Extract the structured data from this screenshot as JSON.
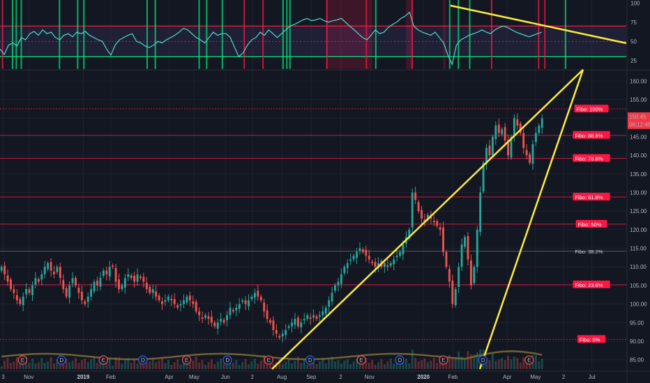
{
  "colors": {
    "background": "#131722",
    "grid": "#1e222d",
    "up": "#26a69a",
    "down": "#ef5350",
    "fib": "#ff1744",
    "fib_neutral": "#e0e3eb",
    "trend": "#ffeb3b",
    "rsi": "#4dd0c4",
    "rsi_band_high": "#ff1744",
    "rsi_band_low": "#00e676",
    "volume_ma": "#7a6a35",
    "current_price": "#f23645"
  },
  "chart_data": [
    {
      "type": "line",
      "name_panel": "rsi",
      "ylim": [
        14,
        104
      ],
      "yticks": [
        "100",
        "75",
        "50",
        "25"
      ],
      "band": [
        30,
        70
      ],
      "series": [
        {
          "values": [
            40,
            33,
            45,
            48,
            44,
            55,
            52,
            60,
            63,
            58,
            65,
            60,
            62,
            55,
            52,
            58,
            60,
            56,
            62,
            60,
            63,
            58,
            55,
            52,
            50,
            40,
            32,
            45,
            52,
            55,
            58,
            60,
            50,
            48,
            44,
            42,
            45,
            50,
            48,
            52,
            55,
            58,
            62,
            67,
            65,
            60,
            55,
            52,
            48,
            55,
            62,
            58,
            60,
            60,
            55,
            42,
            30,
            35,
            45,
            52,
            55,
            62,
            58,
            65,
            60,
            55,
            60,
            65,
            70,
            72,
            75,
            78,
            80,
            77,
            78,
            80,
            77,
            75,
            77,
            78,
            80,
            75,
            70,
            65,
            60,
            55,
            52,
            58,
            65,
            60,
            62,
            68,
            72,
            75,
            80,
            83,
            88,
            70,
            65,
            62,
            60,
            58,
            62,
            55,
            48,
            32,
            20,
            45,
            52,
            55,
            58,
            60,
            62,
            65,
            62,
            60,
            65,
            68,
            70,
            68,
            65,
            62,
            60,
            58,
            56,
            58,
            60,
            62
          ]
        }
      ],
      "events_x": [
        0.004,
        0.02,
        0.026,
        0.034,
        0.095,
        0.124,
        0.134,
        0.235,
        0.248,
        0.318,
        0.33,
        0.355,
        0.39,
        0.42,
        0.452,
        0.458,
        0.463,
        0.522,
        0.585,
        0.6,
        0.658,
        0.718,
        0.732,
        0.75,
        0.785,
        0.86,
        0.87,
        0.903
      ],
      "events_type": [
        "down",
        "up",
        "up",
        "up",
        "up",
        "up",
        "up",
        "up",
        "up",
        "up",
        "up",
        "up",
        "down",
        "down",
        "up",
        "up",
        "up",
        "down",
        "down",
        "up",
        "down",
        "up",
        "up",
        "up",
        "down",
        "down",
        "down",
        "up"
      ],
      "shaded_x": [
        [
          0.52,
          0.595
        ],
        [
          0.648,
          0.66
        ],
        [
          0.707,
          0.712
        ]
      ]
    },
    {
      "type": "candlestick",
      "name_panel": "price",
      "ylim": [
        82.5,
        162.5
      ],
      "yticks": [
        "160.00",
        "155.00",
        "150.00",
        "145.00",
        "140.00",
        "135.00",
        "130.00",
        "125.00",
        "120.00",
        "115.00",
        "110.00",
        "105.00",
        "100.00",
        "95.00",
        "90.00",
        "85.00"
      ],
      "x_ticks": [
        {
          "label": "3",
          "pos": 0.005
        },
        {
          "label": "Nov",
          "pos": 0.046
        },
        {
          "label": "2019",
          "pos": 0.133,
          "bold": true
        },
        {
          "label": "Feb",
          "pos": 0.177
        },
        {
          "label": "Apr",
          "pos": 0.27
        },
        {
          "label": "May",
          "pos": 0.31
        },
        {
          "label": "Jun",
          "pos": 0.36
        },
        {
          "label": "2",
          "pos": 0.403
        },
        {
          "label": "Aug",
          "pos": 0.45
        },
        {
          "label": "Sep",
          "pos": 0.497
        },
        {
          "label": "2",
          "pos": 0.544
        },
        {
          "label": "Nov",
          "pos": 0.59
        },
        {
          "label": "2020",
          "pos": 0.676,
          "bold": true
        },
        {
          "label": "Feb",
          "pos": 0.723
        },
        {
          "label": "Apr",
          "pos": 0.81
        },
        {
          "label": "May",
          "pos": 0.855
        },
        {
          "label": "2",
          "pos": 0.9
        },
        {
          "label": "Jul",
          "pos": 0.945
        }
      ],
      "closes": [
        110,
        108,
        106,
        104,
        103,
        101,
        100,
        102,
        104,
        103,
        105,
        107,
        106,
        108,
        110,
        111,
        109,
        108,
        110,
        107,
        104,
        102,
        105,
        107,
        105,
        103,
        101,
        100,
        102,
        104,
        106,
        105,
        107,
        109,
        108,
        110,
        110,
        106,
        104,
        105,
        107,
        108,
        107,
        106,
        108,
        107,
        106,
        104,
        103,
        104,
        102,
        101,
        100,
        101,
        102,
        101,
        100,
        99,
        100,
        101,
        102,
        101,
        100,
        98,
        97,
        96,
        97,
        96,
        95,
        94,
        95,
        96,
        95,
        97,
        99,
        98,
        99,
        100,
        101,
        100,
        101,
        102,
        103,
        102,
        101,
        98,
        96,
        95,
        93,
        92,
        91,
        92,
        93,
        94,
        95,
        96,
        94,
        95,
        96,
        97,
        96,
        97,
        96,
        97,
        98,
        99,
        101,
        103,
        105,
        106,
        108,
        110,
        111,
        112,
        113,
        114,
        115,
        114,
        113,
        112,
        111,
        110,
        111,
        110,
        111,
        110,
        111,
        112,
        113,
        114,
        116,
        118,
        120,
        130,
        128,
        125,
        123,
        122,
        124,
        123,
        122,
        121,
        120,
        114,
        110,
        106,
        100,
        104,
        110,
        116,
        118,
        112,
        105,
        110,
        120,
        130,
        138,
        142,
        140,
        145,
        148,
        146,
        147,
        144,
        140,
        145,
        150,
        148,
        146,
        142,
        140,
        138,
        143,
        146,
        148,
        150
      ],
      "fib_levels": [
        {
          "label": "Fibo: 100%",
          "value": 152.5,
          "style": "dotted",
          "highlight": true
        },
        {
          "label": "Fibo: 88.6%",
          "value": 145.4,
          "style": "solid",
          "highlight": true
        },
        {
          "label": "Fibo: 78.6%",
          "value": 139.2,
          "style": "solid",
          "highlight": true
        },
        {
          "label": "Fibo: 61.8%",
          "value": 128.8,
          "style": "solid",
          "highlight": true
        },
        {
          "label": "Fibo: 50%",
          "value": 121.5,
          "style": "solid",
          "highlight": true
        },
        {
          "label": "Fibo: 38.2%",
          "value": 114.2,
          "style": "solid",
          "highlight": false
        },
        {
          "label": "Fibo: 23.6%",
          "value": 105.2,
          "style": "solid",
          "highlight": true
        },
        {
          "label": "Fibo: 0%",
          "value": 90.5,
          "style": "dotted",
          "highlight": true
        }
      ],
      "current_price": {
        "label": "150.45",
        "value": 150.45,
        "countdown": "06:12:46"
      },
      "event_markers": [
        {
          "type": "E",
          "pos": 0.036
        },
        {
          "type": "D",
          "pos": 0.098
        },
        {
          "type": "E",
          "pos": 0.165
        },
        {
          "type": "D",
          "pos": 0.228
        },
        {
          "type": "E",
          "pos": 0.298
        },
        {
          "type": "D",
          "pos": 0.363
        },
        {
          "type": "E",
          "pos": 0.429
        },
        {
          "type": "D",
          "pos": 0.495
        },
        {
          "type": "E",
          "pos": 0.577
        },
        {
          "type": "D",
          "pos": 0.638
        },
        {
          "type": "E",
          "pos": 0.708
        },
        {
          "type": "D",
          "pos": 0.771
        },
        {
          "type": "E",
          "pos": 0.845
        }
      ]
    }
  ]
}
